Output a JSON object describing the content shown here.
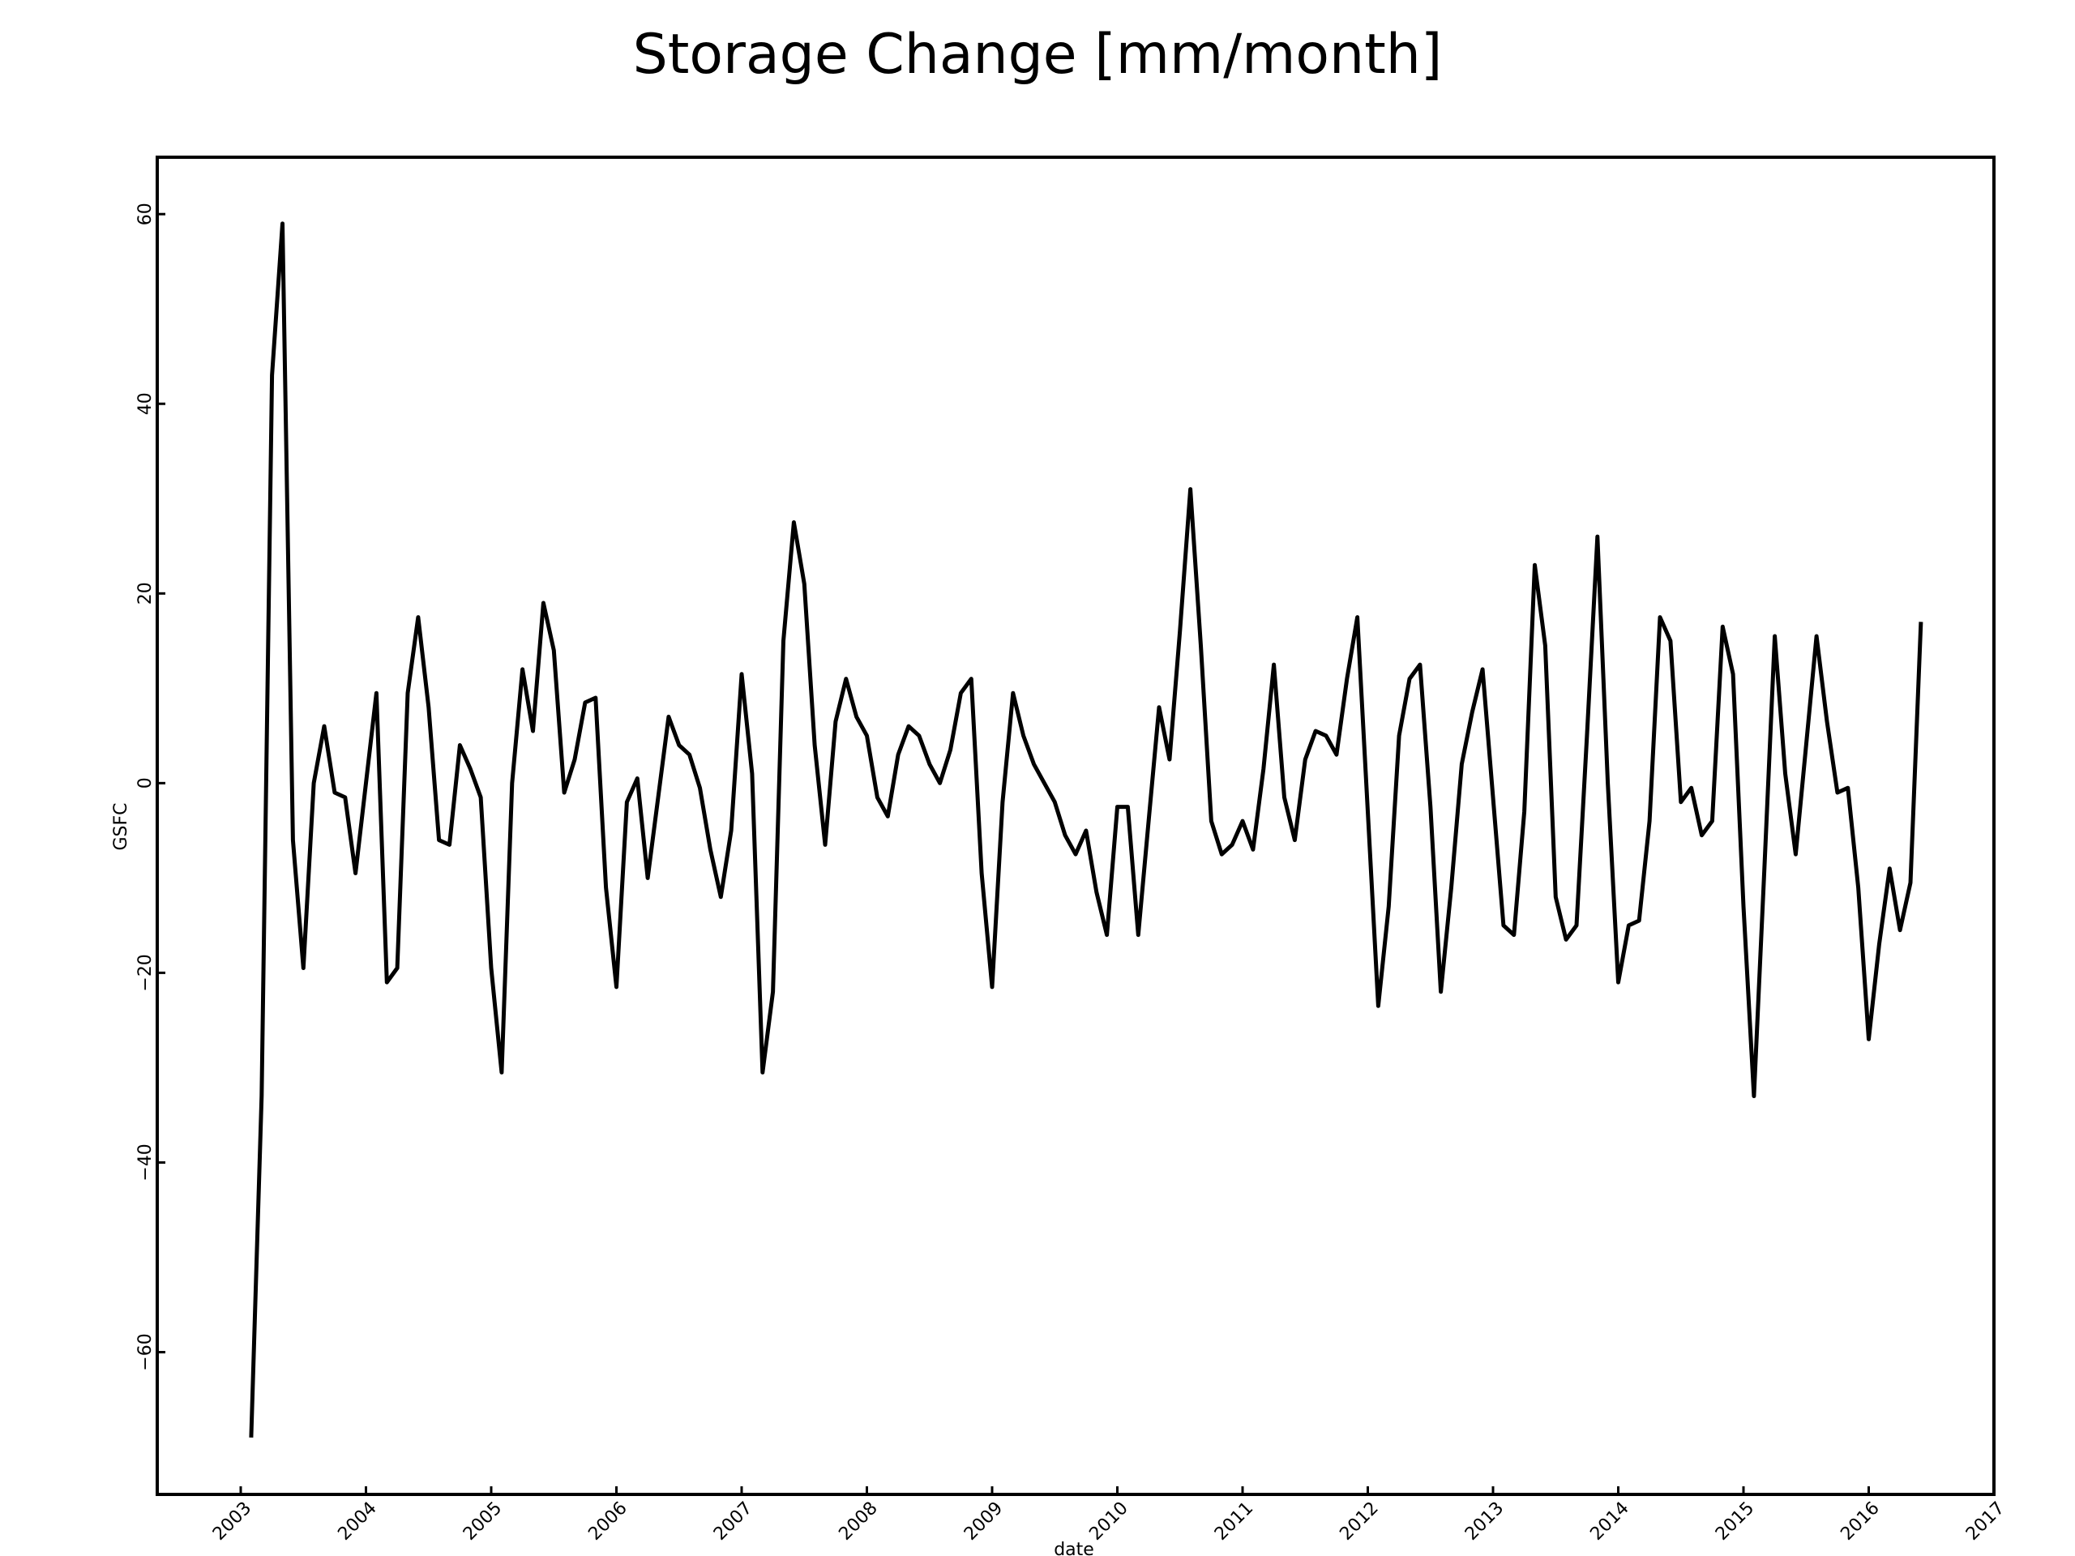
{
  "chart_data": {
    "type": "line",
    "title": "Storage Change [mm/month]",
    "xlabel": "date",
    "ylabel": "GSFC",
    "x_ticks": [
      "2003",
      "2004",
      "2005",
      "2006",
      "2007",
      "2008",
      "2009",
      "2010",
      "2011",
      "2012",
      "2013",
      "2014",
      "2015",
      "2016",
      "2017"
    ],
    "y_ticks": [
      "60",
      "40",
      "20",
      "0",
      "−20",
      "−40",
      "−60"
    ],
    "xlim": [
      "2002-05",
      "2017-01"
    ],
    "ylim": [
      -75,
      66
    ],
    "grid": false,
    "line_color": "#000000",
    "series": [
      {
        "points": [
          [
            "2003-02",
            -69
          ],
          [
            "2003-03",
            -33
          ],
          [
            "2003-04",
            43
          ],
          [
            "2003-05",
            59
          ],
          [
            "2003-06",
            -6
          ],
          [
            "2003-07",
            -19.5
          ],
          [
            "2003-08",
            0
          ],
          [
            "2003-09",
            6
          ],
          [
            "2003-10",
            -1
          ],
          [
            "2003-11",
            -1.5
          ],
          [
            "2003-12",
            -9.5
          ],
          [
            "2004-01",
            0
          ],
          [
            "2004-02",
            9.5
          ],
          [
            "2004-03",
            -21
          ],
          [
            "2004-04",
            -19.5
          ],
          [
            "2004-05",
            9.5
          ],
          [
            "2004-06",
            17.5
          ],
          [
            "2004-07",
            8
          ],
          [
            "2004-08",
            -6
          ],
          [
            "2004-09",
            -6.5
          ],
          [
            "2004-10",
            4
          ],
          [
            "2004-11",
            1.5
          ],
          [
            "2004-12",
            -1.5
          ],
          [
            "2005-01",
            -19.5
          ],
          [
            "2005-02",
            -30.5
          ],
          [
            "2005-03",
            0
          ],
          [
            "2005-04",
            12
          ],
          [
            "2005-05",
            5.5
          ],
          [
            "2005-06",
            19
          ],
          [
            "2005-07",
            14
          ],
          [
            "2005-08",
            -1
          ],
          [
            "2005-09",
            2.5
          ],
          [
            "2005-10",
            8.5
          ],
          [
            "2005-11",
            9
          ],
          [
            "2005-12",
            -11
          ],
          [
            "2006-01",
            -21.5
          ],
          [
            "2006-02",
            -2
          ],
          [
            "2006-03",
            0.5
          ],
          [
            "2006-04",
            -10
          ],
          [
            "2006-05",
            -1.5
          ],
          [
            "2006-06",
            7
          ],
          [
            "2006-07",
            4
          ],
          [
            "2006-08",
            3
          ],
          [
            "2006-09",
            -0.5
          ],
          [
            "2006-10",
            -7
          ],
          [
            "2006-11",
            -12
          ],
          [
            "2006-12",
            -5
          ],
          [
            "2007-01",
            11.5
          ],
          [
            "2007-02",
            1
          ],
          [
            "2007-03",
            -30.5
          ],
          [
            "2007-04",
            -22
          ],
          [
            "2007-05",
            15
          ],
          [
            "2007-06",
            27.5
          ],
          [
            "2007-07",
            21
          ],
          [
            "2007-08",
            4
          ],
          [
            "2007-09",
            -6.5
          ],
          [
            "2007-10",
            6.5
          ],
          [
            "2007-11",
            11
          ],
          [
            "2007-12",
            7
          ],
          [
            "2008-01",
            5
          ],
          [
            "2008-02",
            -1.5
          ],
          [
            "2008-03",
            -3.5
          ],
          [
            "2008-04",
            3
          ],
          [
            "2008-05",
            6
          ],
          [
            "2008-06",
            5
          ],
          [
            "2008-07",
            2
          ],
          [
            "2008-08",
            0
          ],
          [
            "2008-09",
            3.5
          ],
          [
            "2008-10",
            9.5
          ],
          [
            "2008-11",
            11
          ],
          [
            "2008-12",
            -9.5
          ],
          [
            "2009-01",
            -21.5
          ],
          [
            "2009-02",
            -2
          ],
          [
            "2009-03",
            9.5
          ],
          [
            "2009-04",
            5
          ],
          [
            "2009-05",
            2
          ],
          [
            "2009-06",
            0
          ],
          [
            "2009-07",
            -2
          ],
          [
            "2009-08",
            -5.5
          ],
          [
            "2009-09",
            -7.5
          ],
          [
            "2009-10",
            -5
          ],
          [
            "2009-11",
            -11.5
          ],
          [
            "2009-12",
            -16
          ],
          [
            "2010-01",
            -2.5
          ],
          [
            "2010-02",
            -2.5
          ],
          [
            "2010-03",
            -16
          ],
          [
            "2010-04",
            -4
          ],
          [
            "2010-05",
            8
          ],
          [
            "2010-06",
            2.5
          ],
          [
            "2010-07",
            16
          ],
          [
            "2010-08",
            31
          ],
          [
            "2010-09",
            14.5
          ],
          [
            "2010-10",
            -4
          ],
          [
            "2010-11",
            -7.5
          ],
          [
            "2010-12",
            -6.5
          ],
          [
            "2011-01",
            -4
          ],
          [
            "2011-02",
            -7
          ],
          [
            "2011-03",
            1.5
          ],
          [
            "2011-04",
            12.5
          ],
          [
            "2011-05",
            -1.5
          ],
          [
            "2011-06",
            -6
          ],
          [
            "2011-07",
            2.5
          ],
          [
            "2011-08",
            5.5
          ],
          [
            "2011-09",
            5
          ],
          [
            "2011-10",
            3
          ],
          [
            "2011-11",
            11
          ],
          [
            "2011-12",
            17.5
          ],
          [
            "2012-01",
            -3
          ],
          [
            "2012-02",
            -23.5
          ],
          [
            "2012-03",
            -13
          ],
          [
            "2012-04",
            5
          ],
          [
            "2012-05",
            11
          ],
          [
            "2012-06",
            12.5
          ],
          [
            "2012-07",
            -2.5
          ],
          [
            "2012-08",
            -22
          ],
          [
            "2012-09",
            -11
          ],
          [
            "2012-10",
            2
          ],
          [
            "2012-11",
            7.5
          ],
          [
            "2012-12",
            12
          ],
          [
            "2013-01",
            -1.5
          ],
          [
            "2013-02",
            -15
          ],
          [
            "2013-03",
            -16
          ],
          [
            "2013-04",
            -3
          ],
          [
            "2013-05",
            23
          ],
          [
            "2013-06",
            14.5
          ],
          [
            "2013-07",
            -12
          ],
          [
            "2013-08",
            -16.5
          ],
          [
            "2013-09",
            -15
          ],
          [
            "2013-10",
            5
          ],
          [
            "2013-11",
            26
          ],
          [
            "2013-12",
            0
          ],
          [
            "2014-01",
            -21
          ],
          [
            "2014-02",
            -15
          ],
          [
            "2014-03",
            -14.5
          ],
          [
            "2014-04",
            -4
          ],
          [
            "2014-05",
            17.5
          ],
          [
            "2014-06",
            15
          ],
          [
            "2014-07",
            -2
          ],
          [
            "2014-08",
            -0.5
          ],
          [
            "2014-09",
            -5.5
          ],
          [
            "2014-10",
            -4
          ],
          [
            "2014-11",
            16.5
          ],
          [
            "2014-12",
            11.5
          ],
          [
            "2015-01",
            -13
          ],
          [
            "2015-02",
            -33
          ],
          [
            "2015-03",
            -9
          ],
          [
            "2015-04",
            15.5
          ],
          [
            "2015-05",
            1
          ],
          [
            "2015-06",
            -7.5
          ],
          [
            "2015-07",
            4
          ],
          [
            "2015-08",
            15.5
          ],
          [
            "2015-09",
            6.5
          ],
          [
            "2015-10",
            -1
          ],
          [
            "2015-11",
            -0.5
          ],
          [
            "2015-12",
            -11
          ],
          [
            "2016-01",
            -27
          ],
          [
            "2016-02",
            -17
          ],
          [
            "2016-03",
            -9
          ],
          [
            "2016-04",
            -15.5
          ],
          [
            "2016-05",
            -10.5
          ],
          [
            "2016-06",
            17
          ]
        ]
      }
    ]
  }
}
